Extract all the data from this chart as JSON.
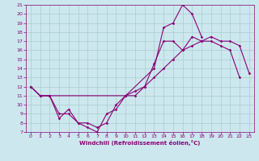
{
  "xlabel": "Windchill (Refroidissement éolien,°C)",
  "ylabel": "",
  "xlim": [
    -0.5,
    23.5
  ],
  "ylim": [
    7,
    21
  ],
  "xticks": [
    0,
    1,
    2,
    3,
    4,
    5,
    6,
    7,
    8,
    9,
    10,
    11,
    12,
    13,
    14,
    15,
    16,
    17,
    18,
    19,
    20,
    21,
    22,
    23
  ],
  "yticks": [
    7,
    8,
    9,
    10,
    11,
    12,
    13,
    14,
    15,
    16,
    17,
    18,
    19,
    20,
    21
  ],
  "bg_color": "#cce8ee",
  "line_color": "#880077",
  "grid_color": "#aacccc",
  "line1_x": [
    0,
    1,
    2,
    3,
    4,
    5,
    6,
    7,
    8,
    9,
    10,
    13,
    14,
    15,
    16,
    17,
    18
  ],
  "line1_y": [
    12,
    11,
    11,
    8.5,
    9.5,
    8,
    7.5,
    7,
    9.0,
    9.5,
    11,
    14,
    18.5,
    19,
    21,
    20,
    17.5
  ],
  "line2_x": [
    0,
    1,
    2,
    3,
    4,
    5,
    6,
    7,
    8,
    9,
    10,
    11,
    12,
    13,
    14,
    15,
    16,
    17,
    18,
    19,
    20,
    21,
    22
  ],
  "line2_y": [
    12,
    11,
    11,
    9,
    9,
    8,
    8,
    7.5,
    8,
    10,
    11,
    11,
    12,
    14.5,
    17,
    17,
    16,
    17.5,
    17,
    17,
    16.5,
    16,
    13
  ],
  "line3_x": [
    0,
    1,
    2,
    10,
    11,
    12,
    13,
    14,
    15,
    16,
    17,
    18,
    19,
    20,
    21,
    22,
    23
  ],
  "line3_y": [
    12,
    11,
    11,
    11,
    11.5,
    12,
    13,
    14,
    15,
    16,
    16.5,
    17,
    17.5,
    17,
    17,
    16.5,
    13.5
  ]
}
